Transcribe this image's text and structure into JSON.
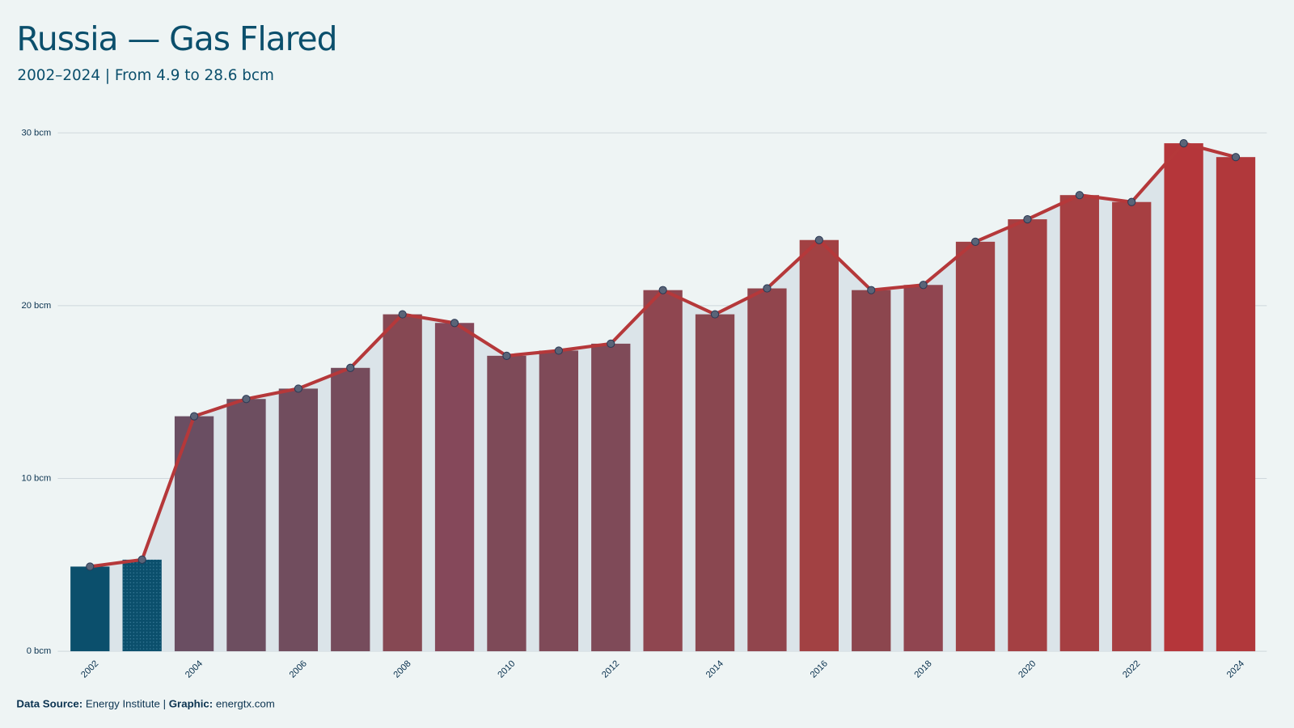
{
  "chart_data": {
    "type": "bar-line",
    "title": "Russia — Gas Flared",
    "subtitle": "2002–2024 | From 4.9 to 28.6 bcm",
    "categories": [
      "2002",
      null,
      "2004",
      null,
      "2006",
      null,
      "2008",
      null,
      "2010",
      null,
      "2012",
      null,
      "2014",
      null,
      "2016",
      null,
      "2018",
      null,
      "2020",
      null,
      "2022",
      null,
      "2024"
    ],
    "values": [
      4.9,
      5.3,
      13.6,
      14.6,
      15.2,
      16.4,
      19.5,
      19.0,
      17.1,
      17.4,
      17.8,
      20.9,
      19.5,
      21.0,
      23.8,
      20.9,
      21.2,
      23.7,
      25.0,
      26.4,
      26.0,
      29.4,
      28.6
    ],
    "colors": [
      "#0b4f6c",
      "#0b4f6c",
      "#6a4e62",
      "#6d4e60",
      "#714d5e",
      "#764c5c",
      "#864853",
      "#85485a",
      "#7e4a58",
      "#7f4a58",
      "#7f4a58",
      "#8f4650",
      "#8a4750",
      "#91454d",
      "#a24143",
      "#8c464e",
      "#904550",
      "#9f4246",
      "#a44043",
      "#a63f42",
      "#a73f42",
      "#b5363a",
      "#b1383b"
    ],
    "line_color": "#b5383a",
    "area_color": "#dbe4e9",
    "marker_color": "#5a6478",
    "ylim": [
      0,
      30
    ],
    "yticks": [
      {
        "value": 0,
        "label": "0 bcm"
      },
      {
        "value": 10,
        "label": "10 bcm"
      },
      {
        "value": 20,
        "label": "20 bcm"
      },
      {
        "value": 30,
        "label": "30 bcm"
      }
    ],
    "grid": true
  },
  "footer": {
    "source_label": "Data Source:",
    "source": "Energy Institute",
    "separator": "|",
    "graphic_label": "Graphic:",
    "graphic": "energtx.com"
  }
}
